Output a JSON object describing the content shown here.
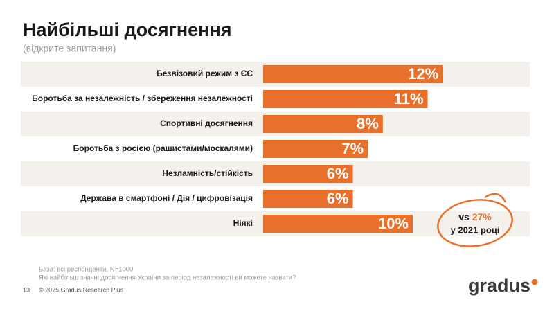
{
  "chart_data": {
    "type": "bar",
    "orientation": "horizontal",
    "title": "Найбільші досягнення",
    "subtitle": "(відкрите запитання)",
    "categories": [
      "Безвізовий режим з ЄС",
      "Боротьба за незалежність / збереження незалежності",
      "Спортивні досягнення",
      "Боротьба з росією (рашистами/москалями)",
      "Незламність/стійкість",
      "Держава в смартфоні / Дія / цифровізація",
      "Ніякі"
    ],
    "values": [
      12,
      11,
      8,
      7,
      6,
      6,
      10
    ],
    "value_labels": [
      "12%",
      "11%",
      "8%",
      "7%",
      "6%",
      "6%",
      "10%"
    ],
    "color": "#e8702a",
    "annotation": {
      "prefix": "vs",
      "highlight": "27%",
      "suffix": "у 2021 році"
    }
  },
  "footer": {
    "base": "База: всі респонденти, N=1000",
    "question": "Які найбільш значні досягнення України за період незалежності ви можете назвати?",
    "page_number": "13",
    "copyright": "© 2025 Gradus Research Plus",
    "logo": "gradus"
  }
}
